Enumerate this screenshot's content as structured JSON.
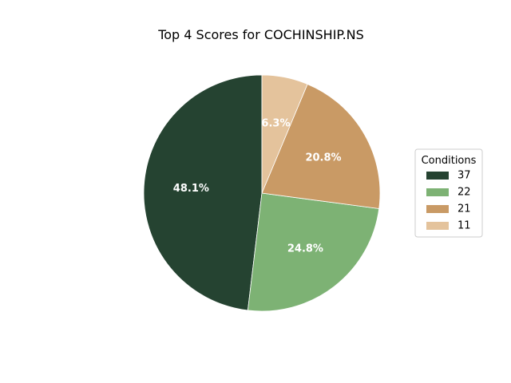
{
  "chart_data": {
    "type": "pie",
    "title": "Top 4 Scores for COCHINSHIP.NS",
    "legend": {
      "title": "Conditions",
      "placement": "center-right"
    },
    "categories": [
      "37",
      "22",
      "21",
      "11"
    ],
    "values": [
      48.1,
      24.8,
      20.8,
      6.3
    ],
    "value_labels": [
      "48.1%",
      "24.8%",
      "20.8%",
      "6.3%"
    ],
    "colors": [
      "#254331",
      "#7db274",
      "#c99a65",
      "#e4c39c"
    ],
    "start_angle_deg": 90,
    "direction": "counterclockwise"
  }
}
